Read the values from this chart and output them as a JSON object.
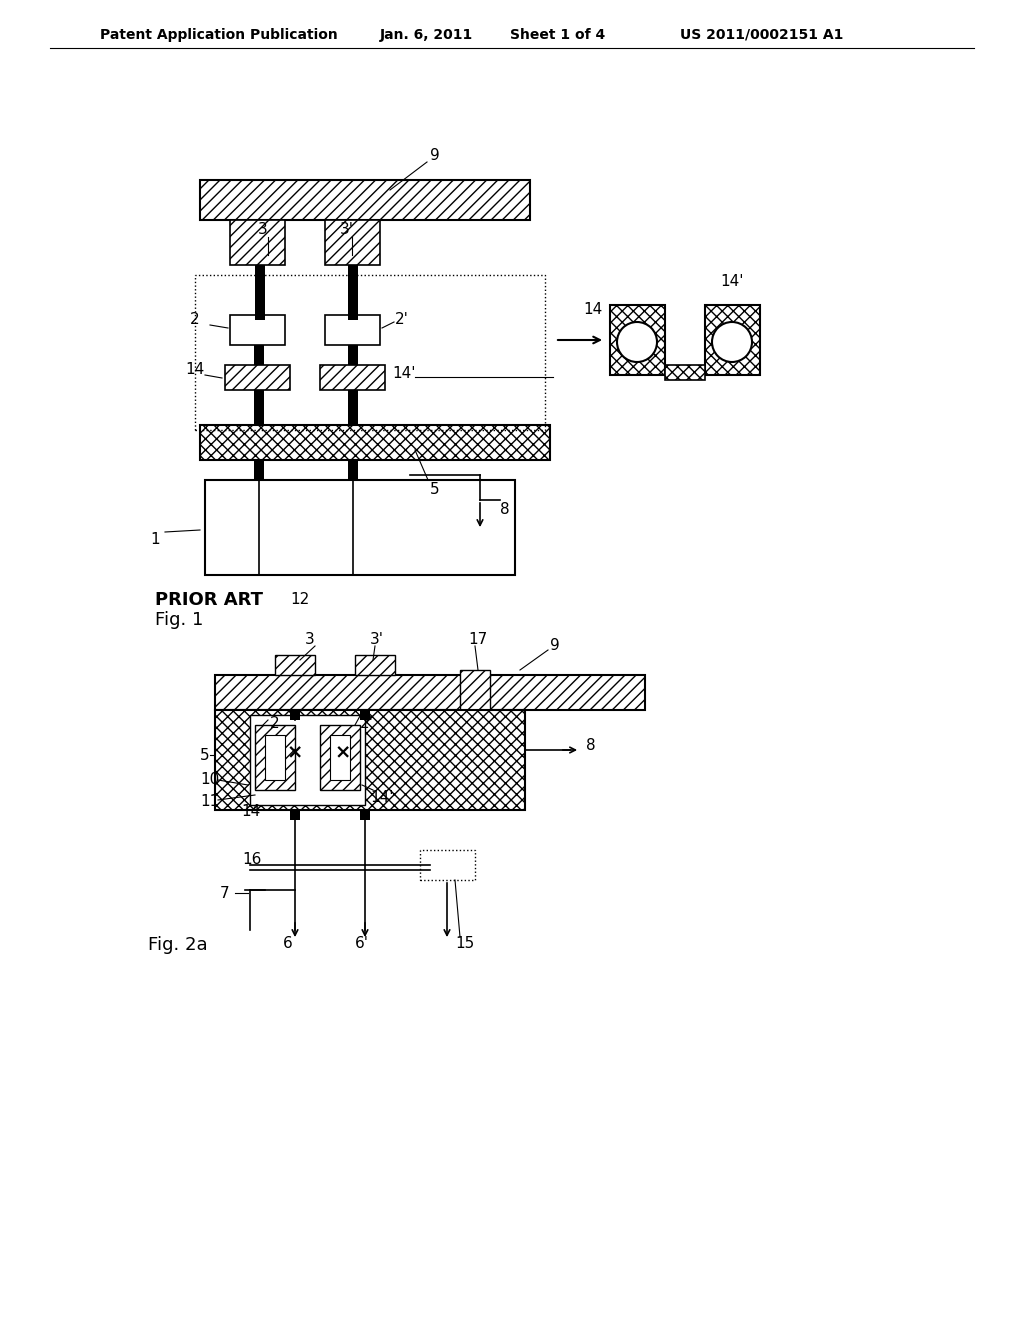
{
  "bg_color": "#ffffff",
  "header_text": "Patent Application Publication",
  "header_date": "Jan. 6, 2011",
  "header_sheet": "Sheet 1 of 4",
  "header_patent": "US 2011/0002151 A1",
  "fig1_label": "Fig. 1",
  "prior_art_label": "PRIOR ART",
  "prior_art_num": "12",
  "fig2_label": "Fig. 2a"
}
